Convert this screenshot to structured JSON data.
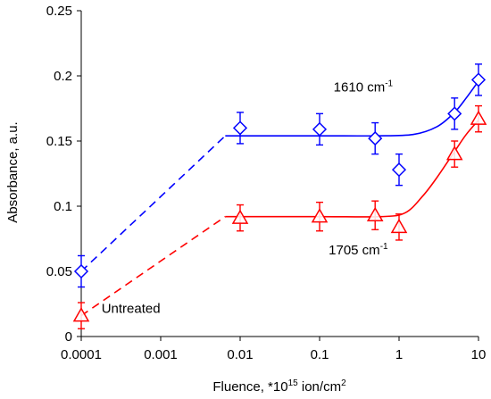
{
  "chart_data": {
    "type": "scatter",
    "xlabel": "Fluence, *10",
    "xlabel_sup": "15",
    "xlabel_suffix": " ion/cm",
    "xlabel_sup2": "2",
    "ylabel": "Absorbance, a.u.",
    "x_scale": "log",
    "xlim": [
      0.0001,
      10
    ],
    "ylim": [
      0,
      0.25
    ],
    "x_ticks": [
      0.0001,
      0.001,
      0.01,
      0.1,
      1,
      10
    ],
    "x_tick_labels": [
      "0.0001",
      "0.001",
      "0.01",
      "0.1",
      "1",
      "10"
    ],
    "y_ticks": [
      0,
      0.05,
      0.1,
      0.15,
      0.2,
      0.25
    ],
    "y_tick_labels": [
      "0",
      "0.05",
      "0.1",
      "0.15",
      "0.2",
      "0.25"
    ],
    "grid": false,
    "series": [
      {
        "marker": "diamond",
        "color": "#0000ff",
        "points": [
          {
            "x": 0.0001,
            "y": 0.05,
            "err": 0.012
          },
          {
            "x": 0.01,
            "y": 0.16,
            "err": 0.012
          },
          {
            "x": 0.1,
            "y": 0.159,
            "err": 0.012
          },
          {
            "x": 0.5,
            "y": 0.152,
            "err": 0.012
          },
          {
            "x": 1,
            "y": 0.128,
            "err": 0.012
          },
          {
            "x": 5,
            "y": 0.171,
            "err": 0.012
          },
          {
            "x": 10,
            "y": 0.197,
            "err": 0.012
          }
        ],
        "dashed_line": [
          [
            0.0001,
            0.05
          ],
          [
            0.0065,
            0.154
          ]
        ],
        "fit_curve": [
          [
            0.0065,
            0.154
          ],
          [
            0.1,
            0.154
          ],
          [
            0.5,
            0.154
          ],
          [
            1.5,
            0.155
          ],
          [
            3,
            0.161
          ],
          [
            5,
            0.172
          ],
          [
            7,
            0.183
          ],
          [
            10,
            0.196
          ]
        ]
      },
      {
        "marker": "triangle",
        "color": "#ff0000",
        "points": [
          {
            "x": 0.0001,
            "y": 0.016,
            "err": 0.01
          },
          {
            "x": 0.01,
            "y": 0.091,
            "err": 0.01
          },
          {
            "x": 0.1,
            "y": 0.092,
            "err": 0.011
          },
          {
            "x": 0.5,
            "y": 0.093,
            "err": 0.011
          },
          {
            "x": 1,
            "y": 0.084,
            "err": 0.01
          },
          {
            "x": 5,
            "y": 0.14,
            "err": 0.01
          },
          {
            "x": 10,
            "y": 0.167,
            "err": 0.01
          }
        ],
        "dashed_line": [
          [
            0.0001,
            0.016
          ],
          [
            0.0065,
            0.092
          ]
        ],
        "fit_curve": [
          [
            0.0065,
            0.092
          ],
          [
            0.1,
            0.092
          ],
          [
            0.6,
            0.092
          ],
          [
            1.2,
            0.095
          ],
          [
            2,
            0.108
          ],
          [
            3,
            0.122
          ],
          [
            5,
            0.142
          ],
          [
            7,
            0.155
          ],
          [
            10,
            0.166
          ]
        ]
      }
    ],
    "annotations": [
      {
        "text": "1610 cm",
        "sup": "-1",
        "x": 0.15,
        "y": 0.188
      },
      {
        "text": "1705 cm",
        "sup": "-1",
        "x": 0.13,
        "y": 0.063
      },
      {
        "text": "Untreated",
        "sup": "",
        "x": 0.00018,
        "y": 0.018
      }
    ]
  }
}
